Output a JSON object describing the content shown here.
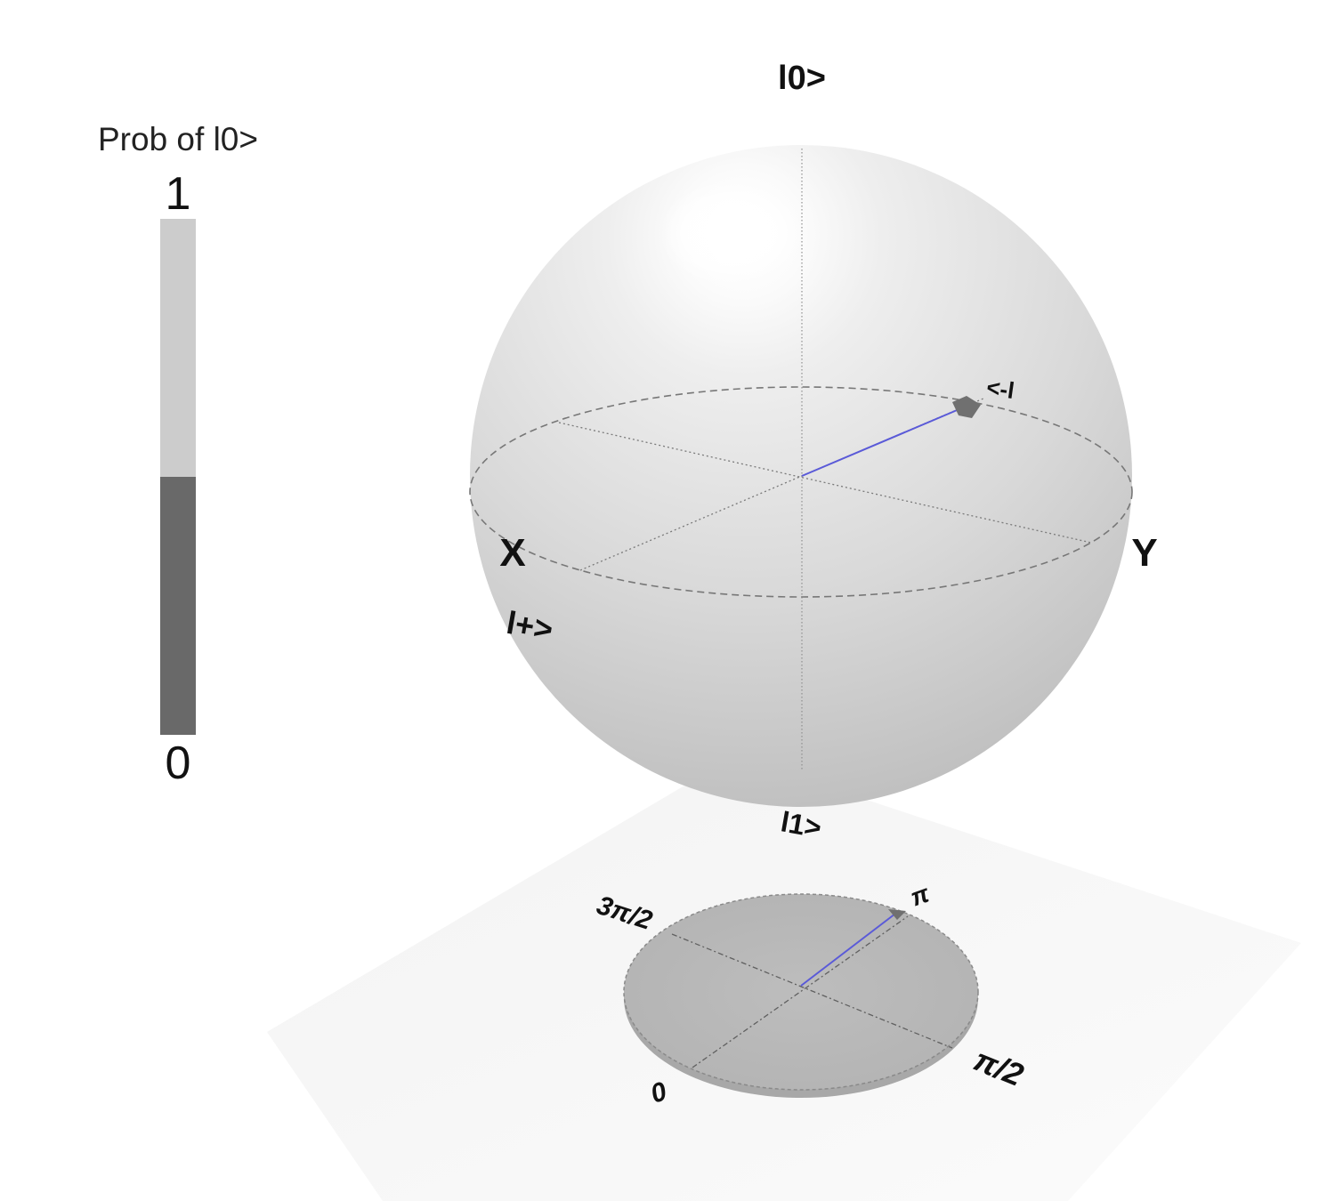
{
  "probability_bar": {
    "title": "Prob of l0>",
    "tick_top": "1",
    "tick_bottom": "0",
    "prob_zero": 0.5,
    "color_prob_zero": "#cccccc",
    "color_prob_one": "#696969"
  },
  "sphere": {
    "label_top": "l0>",
    "label_bottom": "l1>",
    "label_x": "X",
    "label_y": "Y",
    "label_plus": "l+>",
    "label_state": "<-l",
    "state_vector_color": "#5a5ad8",
    "sphere_color": "#dedede",
    "state_marker_color": "#707070"
  },
  "phase_disk": {
    "labels": {
      "zero": "0",
      "pi_over_2": "π/2",
      "pi": "π",
      "three_pi_over_2": "3π/2"
    },
    "phase_label": "π",
    "vector_color": "#5a5ad8",
    "disk_color": "#b9b9b9"
  }
}
